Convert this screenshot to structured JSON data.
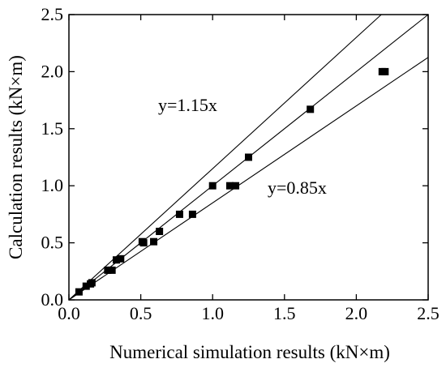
{
  "chart_data": {
    "type": "scatter",
    "xlabel": "Numerical simulation results (kN×m)",
    "ylabel": "Calculation  results (kN×m)",
    "xlim": [
      0.0,
      2.5
    ],
    "ylim": [
      0.0,
      2.5
    ],
    "x_ticks": [
      "0.0",
      "0.5",
      "1.0",
      "1.5",
      "2.0",
      "2.5"
    ],
    "y_ticks": [
      "0.0",
      "0.5",
      "1.0",
      "1.5",
      "2.0",
      "2.5"
    ],
    "grid": false,
    "reference_lines": [
      {
        "slope": 1.15
      },
      {
        "slope": 1.0
      },
      {
        "slope": 0.85
      }
    ],
    "annotations": [
      {
        "text": "y=1.15x"
      },
      {
        "text": "y=0.85x"
      }
    ],
    "series": [
      {
        "points": [
          [
            0.07,
            0.07
          ],
          [
            0.12,
            0.12
          ],
          [
            0.16,
            0.15
          ],
          [
            0.15,
            0.14
          ],
          [
            0.27,
            0.26
          ],
          [
            0.3,
            0.26
          ],
          [
            0.33,
            0.35
          ],
          [
            0.36,
            0.36
          ],
          [
            0.51,
            0.51
          ],
          [
            0.52,
            0.5
          ],
          [
            0.59,
            0.51
          ],
          [
            0.63,
            0.6
          ],
          [
            0.77,
            0.75
          ],
          [
            0.86,
            0.75
          ],
          [
            1.0,
            1.0
          ],
          [
            1.12,
            1.0
          ],
          [
            1.16,
            1.0
          ],
          [
            1.25,
            1.25
          ],
          [
            1.68,
            1.67
          ],
          [
            2.18,
            2.0
          ],
          [
            2.2,
            2.0
          ]
        ]
      }
    ]
  }
}
